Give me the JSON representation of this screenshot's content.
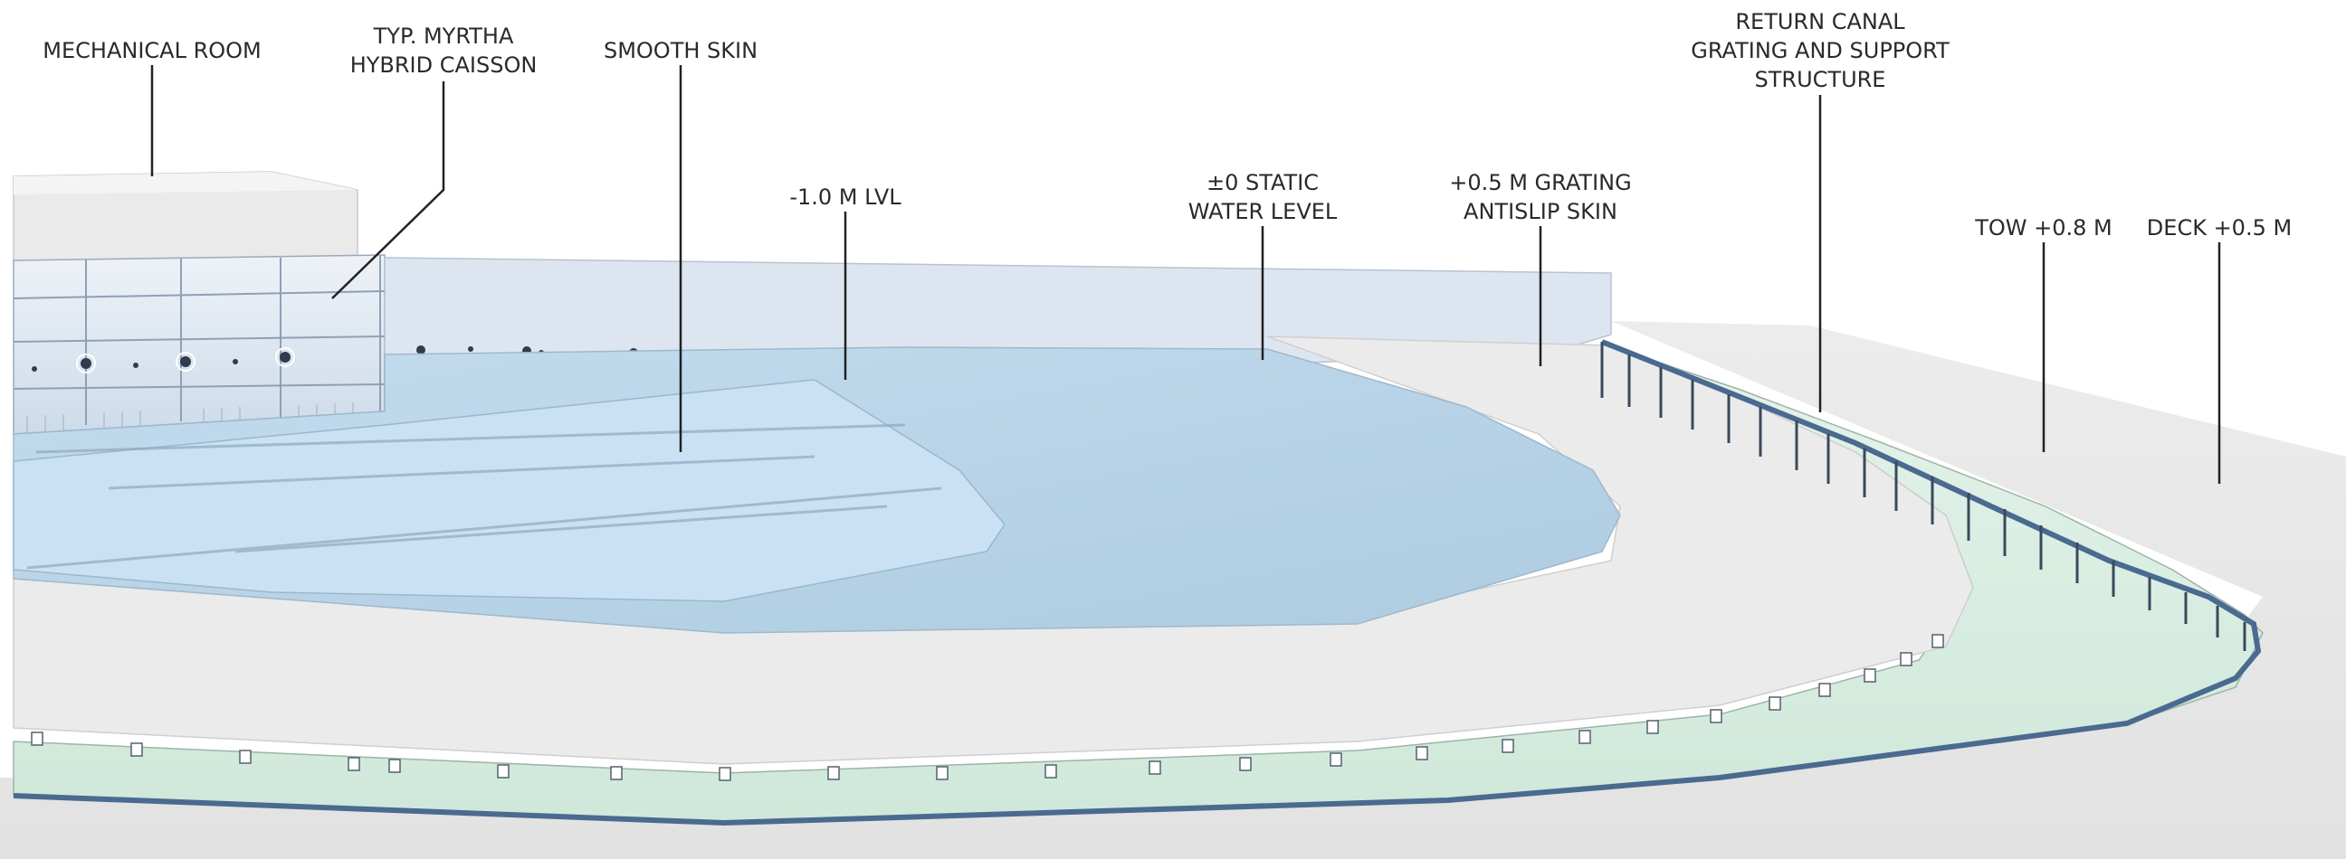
{
  "labels": {
    "mechanical_room": [
      "MECHANICAL ROOM"
    ],
    "caisson": [
      "TYP. MYRTHA",
      "HYBRID CAISSON"
    ],
    "smooth_skin": [
      "SMOOTH SKIN"
    ],
    "minus_one": [
      "-1.0 M LVL"
    ],
    "static_level": [
      "±0 STATIC",
      "WATER LEVEL"
    ],
    "grating_skin": [
      "+0.5 M GRATING",
      "ANTISLIP SKIN"
    ],
    "return_canal": [
      "RETURN CANAL",
      "GRATING AND SUPPORT",
      "STRUCTURE"
    ],
    "tow": [
      "TOW +0.8 M"
    ],
    "deck": [
      "DECK +0.5 M"
    ]
  },
  "colors": {
    "water_light": "#c6dff0",
    "water_mid": "#b4d0e2",
    "water_dark": "#a9c8de",
    "deck": "#e8e8e8",
    "canal_green": "#d9efe4",
    "rim_blue": "#4a6a90",
    "leader": "#222222",
    "wall_glass": "#dfe8f2"
  }
}
